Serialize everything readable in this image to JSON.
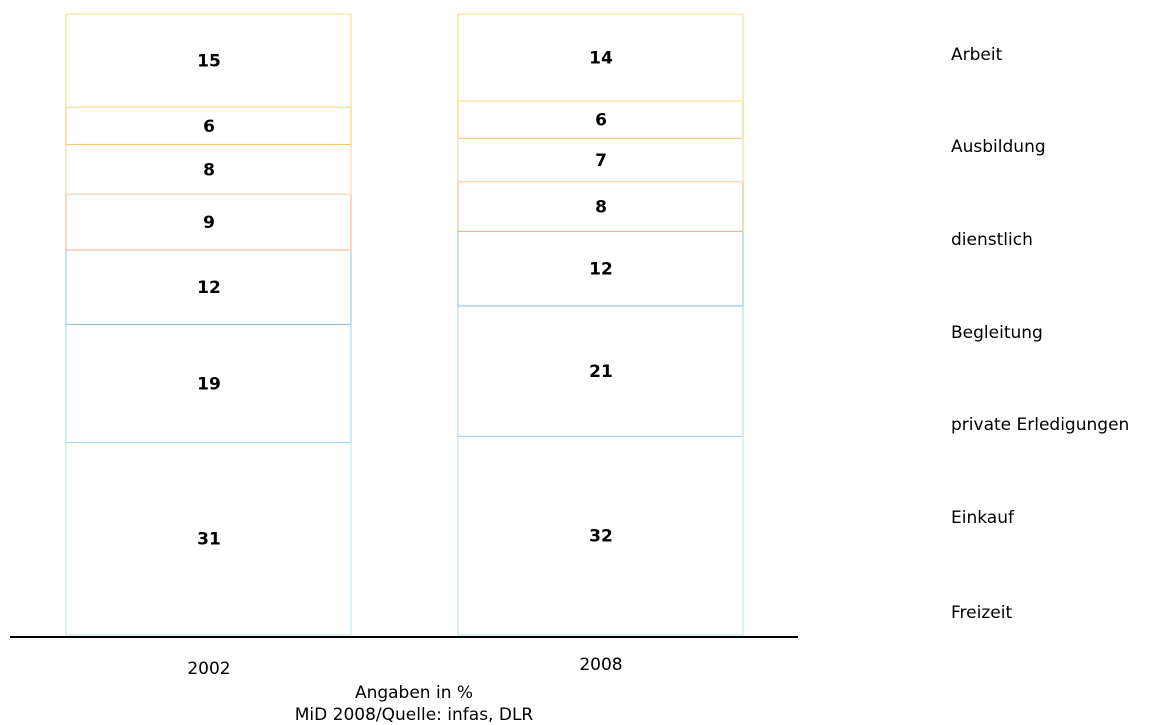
{
  "chart_data": {
    "type": "bar",
    "stacked": true,
    "categories": [
      "2002",
      "2008"
    ],
    "series": [
      {
        "name": "Freizeit",
        "values": [
          31,
          32
        ],
        "color": "#bfe0ef"
      },
      {
        "name": "Einkauf",
        "values": [
          19,
          21
        ],
        "color": "#a8d4ea"
      },
      {
        "name": "private Erledigungen",
        "values": [
          12,
          12
        ],
        "color": "#8fc2e0"
      },
      {
        "name": "Begleitung",
        "values": [
          9,
          8
        ],
        "color": "#f0b08a"
      },
      {
        "name": "dienstlich",
        "values": [
          8,
          7
        ],
        "color": "#f7d0a8"
      },
      {
        "name": "Ausbildung",
        "values": [
          6,
          6
        ],
        "color": "#f5c470"
      },
      {
        "name": "Arbeit",
        "values": [
          15,
          14
        ],
        "color": "#f8d98a"
      }
    ],
    "legend_order": [
      "Arbeit",
      "Ausbildung",
      "dienstlich",
      "Begleitung",
      "private Erledigungen",
      "Einkauf",
      "Freizeit"
    ],
    "legend_position": "right",
    "ylim": [
      0,
      100
    ],
    "grid": false,
    "footer": [
      "Angaben in %",
      "MiD 2008/Quelle: infas, DLR"
    ]
  }
}
